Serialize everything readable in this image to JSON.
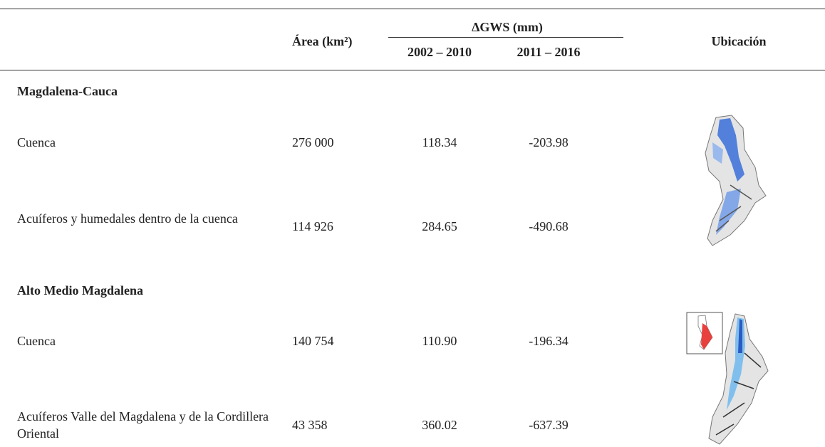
{
  "header": {
    "area": "Área (km²)",
    "gws": "ΔGWS (mm)",
    "period1": "2002 – 2010",
    "period2": "2011 – 2016",
    "location": "Ubicación"
  },
  "sections": [
    {
      "title": "Magdalena-Cauca",
      "rows": [
        {
          "name": "Cuenca",
          "area": "276 000",
          "p1": "118.34",
          "p2": "-203.98"
        },
        {
          "name": "Acuíferos y humedales dentro de la cuenca",
          "area": "114 926",
          "p1": "284.65",
          "p2": "-490.68"
        }
      ]
    },
    {
      "title": "Alto Medio Magdalena",
      "rows": [
        {
          "name": "Cuenca",
          "area": "140 754",
          "p1": "110.90",
          "p2": "-196.34"
        },
        {
          "name": "Acuíferos Valle del Magdalena y de la Cordillera Oriental",
          "area": "43 358",
          "p1": "360.02",
          "p2": "-637.39"
        }
      ]
    }
  ]
}
